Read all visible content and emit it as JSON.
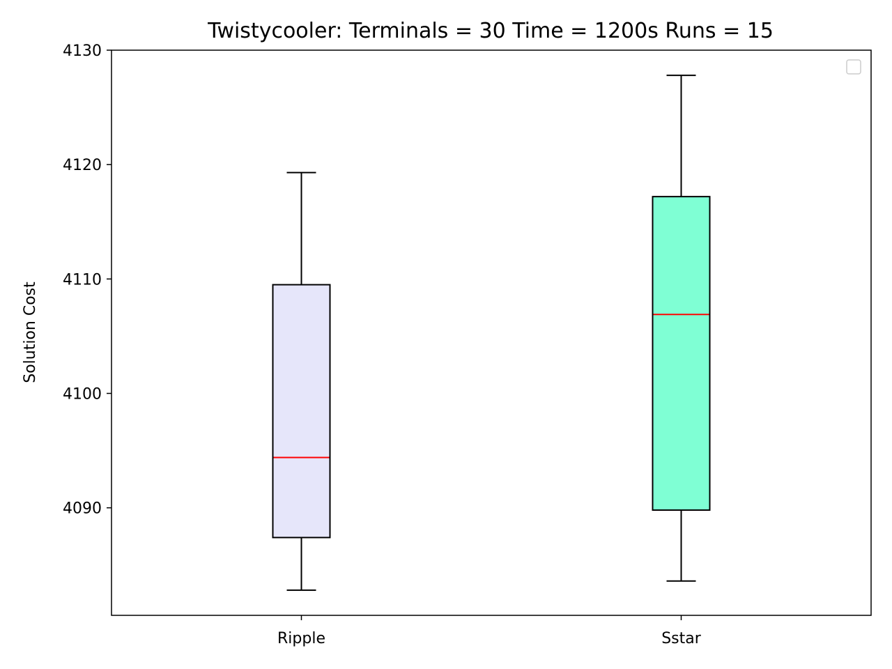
{
  "chart_data": {
    "type": "box",
    "title": "Twistycooler:  Terminals = 30  Time = 1200s  Runs = 15",
    "xlabel": "",
    "ylabel": "Solution Cost",
    "ylim": [
      4080.6,
      4130
    ],
    "yticks": [
      4090,
      4100,
      4110,
      4120,
      4130
    ],
    "grid": false,
    "legend": "top-right (empty)",
    "categories": [
      "Ripple",
      "Sstar"
    ],
    "boxes": [
      {
        "category": "Ripple",
        "whisker_low": 4082.8,
        "q1": 4087.4,
        "median": 4094.4,
        "q3": 4109.5,
        "whisker_high": 4119.3,
        "fill": "#e6e6fa"
      },
      {
        "category": "Sstar",
        "whisker_low": 4083.6,
        "q1": 4089.8,
        "median": 4106.9,
        "q3": 4117.2,
        "whisker_high": 4127.8,
        "fill": "#7fffd4"
      }
    ],
    "colors": {
      "median": "#ff0000",
      "edge": "#000000",
      "legend_border": "#cccccc"
    }
  }
}
